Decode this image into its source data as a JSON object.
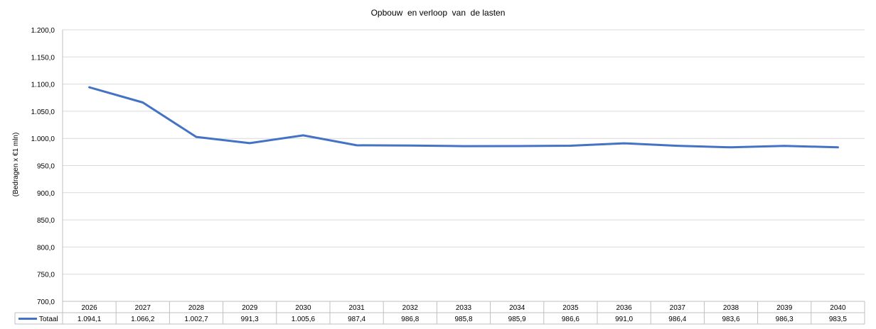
{
  "chart_data": {
    "type": "line",
    "title": "Opbouw  en verloop  van  de lasten",
    "ylabel": "(Bedragen x €1 mln)",
    "xlabel": "",
    "ylim": [
      700,
      1200
    ],
    "ytick_labels": [
      "700,0",
      "750,0",
      "800,0",
      "850,0",
      "900,0",
      "950,0",
      "1.000,0",
      "1.050,0",
      "1.100,0",
      "1.150,0",
      "1.200,0"
    ],
    "categories": [
      "2026",
      "2027",
      "2028",
      "2029",
      "2030",
      "2031",
      "2032",
      "2033",
      "2034",
      "2035",
      "2036",
      "2037",
      "2038",
      "2039",
      "2040"
    ],
    "series": [
      {
        "name": "Totaal",
        "values": [
          1094.1,
          1066.2,
          1002.7,
          991.3,
          1005.6,
          987.4,
          986.8,
          985.8,
          985.9,
          986.6,
          991.0,
          986.4,
          983.6,
          986.3,
          983.5
        ],
        "value_labels": [
          "1.094,1",
          "1.066,2",
          "1.002,7",
          "991,3",
          "1.005,6",
          "987,4",
          "986,8",
          "985,8",
          "985,9",
          "986,6",
          "991,0",
          "986,4",
          "983,6",
          "986,3",
          "983,5"
        ],
        "color": "#4472C4"
      }
    ],
    "grid": true,
    "legend": "data-table-left"
  }
}
